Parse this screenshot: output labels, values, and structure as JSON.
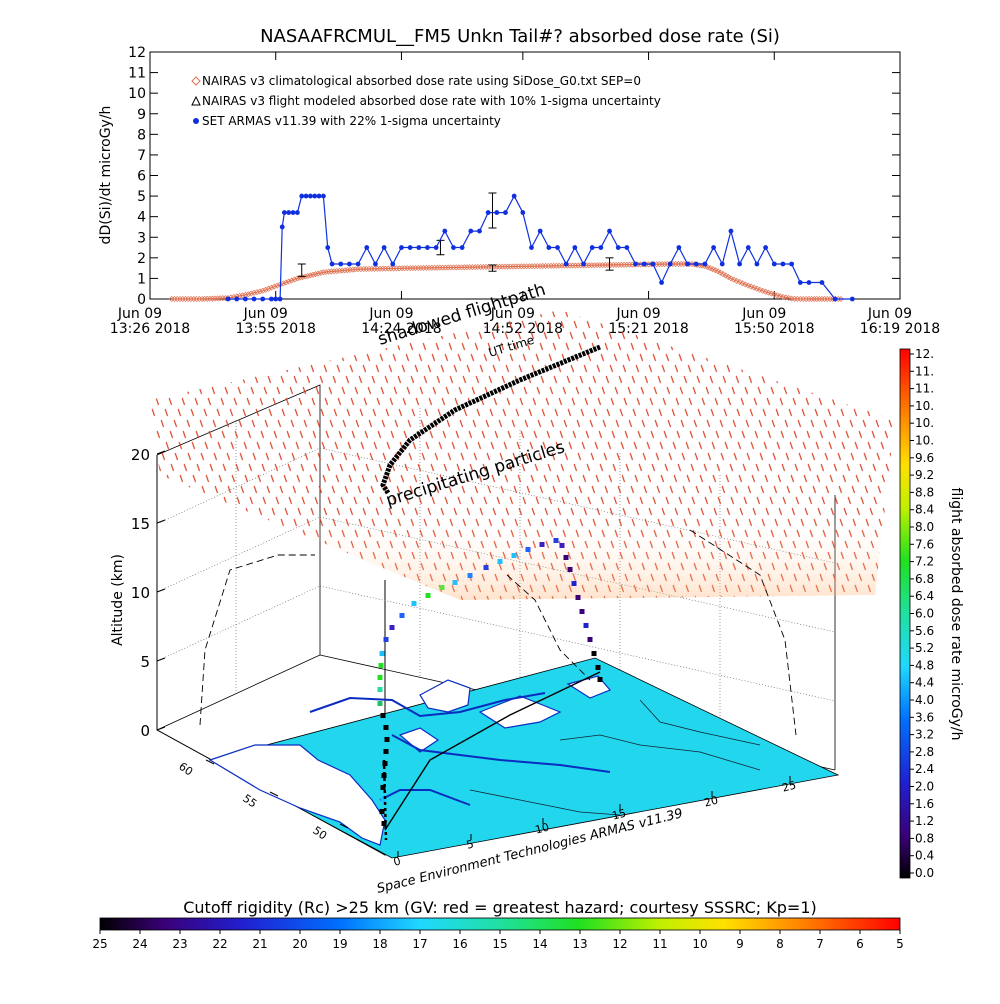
{
  "chart_data": [
    {
      "type": "line",
      "title": "NASAAFRCMUL__FM5 Unkn Tail#? absorbed dose rate (Si)",
      "ylabel": "dD(Si)/dt microGy/h",
      "xlabel": "UT time",
      "ylim": [
        0,
        12
      ],
      "yticks": [
        "0",
        "1",
        "2",
        "3",
        "4",
        "5",
        "6",
        "7",
        "8",
        "9",
        "10",
        "11",
        "12"
      ],
      "xlim": [
        0,
        173
      ],
      "xticks": [
        {
          "t": 0,
          "l1": "Jun 09",
          "l2": "13:26  2018"
        },
        {
          "t": 29,
          "l1": "Jun 09",
          "l2": "13:55  2018"
        },
        {
          "t": 58,
          "l1": "Jun 09",
          "l2": "14:24  2018"
        },
        {
          "t": 86,
          "l1": "Jun 09",
          "l2": "14:52  2018"
        },
        {
          "t": 115,
          "l1": "Jun 09",
          "l2": "15:21  2018"
        },
        {
          "t": 144,
          "l1": "Jun 09",
          "l2": "15:50  2018"
        },
        {
          "t": 173,
          "l1": "Jun 09",
          "l2": "16:19  2018"
        }
      ],
      "legend": [
        {
          "marker": "diamond",
          "label": "NAIRAS v3 climatological absorbed dose rate using SiDose_G0.txt SEP=0",
          "color": "#e07050"
        },
        {
          "marker": "triangle",
          "label": "NAIRAS v3 flight modeled absorbed dose rate with 10% 1-sigma uncertainty",
          "color": "#000000"
        },
        {
          "marker": "dot",
          "label": "SET ARMAS v11.39 with 22% 1-sigma uncertainty",
          "color": "#1030e0"
        }
      ],
      "series": [
        {
          "name": "NAIRAS v3 climatological absorbed dose rate using SiDose_G0.txt SEP=0",
          "color": "#e07050",
          "x": [
            5,
            12,
            18,
            22,
            26,
            30,
            34,
            40,
            48,
            60,
            75,
            90,
            105,
            120,
            125,
            128,
            131,
            134,
            138,
            142,
            146,
            148,
            150,
            152,
            155,
            160
          ],
          "values": [
            0,
            0,
            0.05,
            0.2,
            0.4,
            0.7,
            1.0,
            1.3,
            1.45,
            1.5,
            1.55,
            1.6,
            1.65,
            1.7,
            1.7,
            1.6,
            1.35,
            1.0,
            0.65,
            0.35,
            0.1,
            0.02,
            0,
            0,
            0,
            0
          ]
        },
        {
          "name": "NAIRAS v3 flight modeled absorbed dose rate with 10% 1-sigma uncertainty",
          "color": "#000000",
          "points": [
            {
              "x": 35,
              "y": 1.4,
              "err": 0.3
            },
            {
              "x": 67,
              "y": 2.5,
              "err": 0.35
            },
            {
              "x": 79,
              "y": 4.3,
              "err": 0.85
            },
            {
              "x": 79,
              "y": 1.5,
              "err": 0.15
            },
            {
              "x": 106,
              "y": 1.7,
              "err": 0.3
            }
          ]
        },
        {
          "name": "SET ARMAS v11.39 with 22% 1-sigma uncertainty",
          "color": "#1030e0",
          "x": [
            18,
            20,
            22,
            24,
            26,
            28,
            29,
            30,
            30.5,
            31,
            32,
            33,
            34,
            35,
            36,
            37,
            38,
            39,
            40,
            41,
            42,
            44,
            46,
            48,
            50,
            52,
            54,
            56,
            58,
            60,
            62,
            64,
            66,
            68,
            70,
            72,
            74,
            76,
            78,
            80,
            82,
            84,
            86,
            88,
            90,
            92,
            94,
            96,
            98,
            100,
            102,
            104,
            106,
            108,
            110,
            112,
            114,
            116,
            118,
            120,
            122,
            124,
            126,
            128,
            130,
            132,
            134,
            136,
            138,
            140,
            142,
            144,
            146,
            148,
            150,
            152,
            155,
            158,
            162
          ],
          "values": [
            0,
            0,
            0,
            0,
            0,
            0,
            0,
            0,
            3.5,
            4.2,
            4.2,
            4.2,
            4.2,
            5.0,
            5.0,
            5.0,
            5.0,
            5.0,
            5.0,
            2.5,
            1.7,
            1.7,
            1.7,
            1.7,
            2.5,
            1.7,
            2.5,
            1.7,
            2.5,
            2.5,
            2.5,
            2.5,
            2.5,
            3.3,
            2.5,
            2.5,
            3.3,
            3.3,
            4.2,
            4.2,
            4.2,
            5.0,
            4.2,
            2.5,
            3.3,
            2.5,
            2.5,
            1.7,
            2.5,
            1.7,
            2.5,
            2.5,
            3.3,
            2.5,
            2.5,
            1.7,
            1.7,
            1.7,
            0.8,
            1.7,
            2.5,
            1.7,
            1.7,
            1.7,
            2.5,
            1.7,
            3.3,
            1.7,
            2.5,
            1.7,
            2.5,
            1.7,
            1.7,
            1.7,
            0.8,
            0.8,
            0.8,
            0,
            0
          ]
        }
      ]
    },
    {
      "type": "scatter",
      "annotations": [
        "shadowed flightpath",
        "precipitating particles"
      ],
      "zlabel": "Altitude (km)",
      "zticks": [
        "0",
        "5",
        "10",
        "15",
        "20"
      ],
      "lat_ticks": [
        "60",
        "55",
        "50"
      ],
      "lon_ticks": [
        "0",
        "5",
        "10",
        "15",
        "20",
        "25"
      ],
      "credit": "Space Environment Technologies ARMAS v11.39",
      "flight_track": {
        "altitude_km": [
          0.2,
          1.0,
          2.0,
          3.2,
          4.5,
          6.0,
          7.2,
          8.2,
          9.0,
          9.8,
          10.4,
          11.0,
          11.5,
          12.0,
          12.4,
          12.6,
          12.7,
          12.6,
          11.2,
          9.0,
          6.5,
          4.0,
          1.5
        ]
      }
    },
    {
      "type": "heatmap",
      "title": "flight absorbed dose rate microGy/h",
      "colormap": "rainbow",
      "ticks": [
        "12.",
        "11.",
        "11.",
        "10.",
        "10.",
        "10.",
        "9.6",
        "9.2",
        "8.8",
        "8.4",
        "8.0",
        "7.6",
        "7.2",
        "6.8",
        "6.4",
        "6.0",
        "5.6",
        "5.2",
        "4.8",
        "4.4",
        "4.0",
        "3.6",
        "3.2",
        "2.8",
        "2.4",
        "2.0",
        "1.6",
        "1.2",
        "0.8",
        "0.4",
        "0.0"
      ]
    },
    {
      "type": "heatmap",
      "title": "Cutoff rigidity (Rc) >25 km (GV: red = greatest hazard; courtesy SSSRC; Kp=1)",
      "colormap": "rainbow",
      "ticks": [
        "25",
        "24",
        "23",
        "22",
        "21",
        "20",
        "19",
        "18",
        "17",
        "16",
        "15",
        "14",
        "13",
        "12",
        "11",
        "10",
        "9",
        "8",
        "7",
        "6",
        "5"
      ]
    }
  ]
}
